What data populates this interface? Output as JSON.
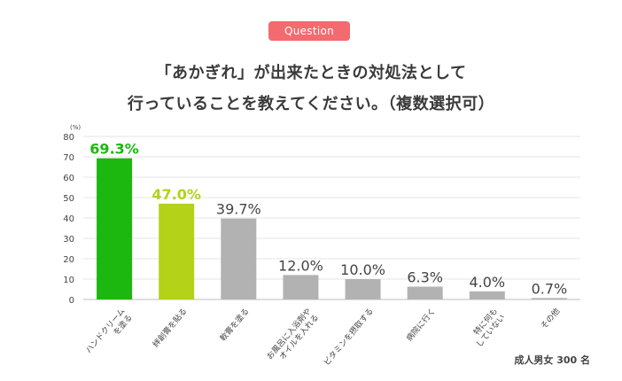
{
  "badge": {
    "label": "Question"
  },
  "question": {
    "line1": "「あかぎれ」が出来たときの対処法として",
    "line2": "行っていることを教えてください。（複数選択可）"
  },
  "respondents": "成人男女 300 名",
  "colors": {
    "first": "#1cb70f",
    "second": "#b4d217",
    "other": "#b2b2b2",
    "badge": "#f36a6f"
  },
  "chart_data": {
    "type": "bar",
    "yunit": "(%)",
    "ylim": [
      0,
      80
    ],
    "yticks": [
      0,
      10,
      20,
      30,
      40,
      50,
      60,
      70,
      80
    ],
    "grid": true,
    "categories": [
      {
        "lines": [
          "ハンドクリーム",
          "を塗る"
        ]
      },
      {
        "lines": [
          "絆創膏を貼る"
        ]
      },
      {
        "lines": [
          "軟膏を塗る"
        ]
      },
      {
        "lines": [
          "お風呂に入浴剤や",
          "オイルを入れる"
        ]
      },
      {
        "lines": [
          "ビタミンを摂取する"
        ]
      },
      {
        "lines": [
          "病院に行く"
        ]
      },
      {
        "lines": [
          "特に何も",
          "していない"
        ]
      },
      {
        "lines": [
          "その他"
        ]
      }
    ],
    "values": [
      69.3,
      47.0,
      39.7,
      12.0,
      10.0,
      6.3,
      4.0,
      0.7
    ],
    "value_labels": [
      "69.3%",
      "47.0%",
      "39.7%",
      "12.0%",
      "10.0%",
      "6.3%",
      "4.0%",
      "0.7%"
    ]
  }
}
